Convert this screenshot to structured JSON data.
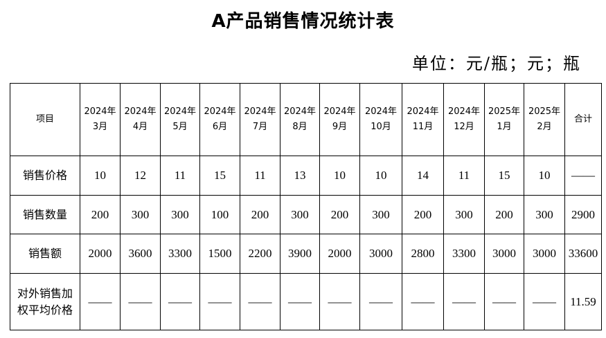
{
  "title": "A产品销售情况统计表",
  "unit": "单位：元/瓶；元；瓶",
  "table": {
    "headers": [
      "项目",
      "2024年\n3月",
      "2024年\n4月",
      "2024年\n5月",
      "2024年\n6月",
      "2024年\n7月",
      "2024年\n8月",
      "2024年\n9月",
      "2024年\n10月",
      "2024年\n11月",
      "2024年\n12月",
      "2025年\n1月",
      "2025年\n2月",
      "合计"
    ],
    "rows": [
      {
        "label": "销售价格",
        "values": [
          "10",
          "12",
          "11",
          "15",
          "11",
          "13",
          "10",
          "10",
          "14",
          "11",
          "15",
          "10",
          "——"
        ]
      },
      {
        "label": "销售数量",
        "values": [
          "200",
          "300",
          "300",
          "100",
          "200",
          "300",
          "200",
          "300",
          "200",
          "300",
          "200",
          "300",
          "2900"
        ]
      },
      {
        "label": "销售额",
        "values": [
          "2000",
          "3600",
          "3300",
          "1500",
          "2200",
          "3900",
          "2000",
          "3000",
          "2800",
          "3300",
          "3000",
          "3000",
          "33600"
        ]
      },
      {
        "label": "对外销售加权平均价格",
        "values": [
          "——",
          "——",
          "——",
          "——",
          "——",
          "——",
          "——",
          "——",
          "——",
          "——",
          "——",
          "——",
          "11.59"
        ]
      }
    ]
  }
}
